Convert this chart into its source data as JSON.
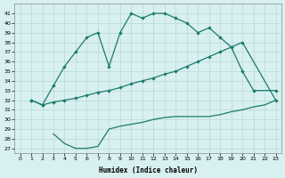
{
  "line1_x": [
    1,
    2,
    3,
    4,
    5,
    6,
    7,
    8,
    9,
    10,
    11,
    12,
    13,
    14,
    15,
    16,
    17,
    18,
    19,
    20,
    21,
    23
  ],
  "line1_y": [
    32.0,
    31.5,
    33.5,
    35.5,
    37.0,
    38.5,
    39.0,
    35.5,
    39.0,
    41.0,
    40.5,
    41.0,
    41.0,
    40.5,
    40.0,
    39.0,
    39.5,
    38.5,
    37.5,
    35.0,
    33.0,
    33.0
  ],
  "line2_x": [
    1,
    2,
    3,
    4,
    5,
    6,
    7,
    8,
    9,
    10,
    11,
    12,
    13,
    14,
    15,
    16,
    17,
    18,
    19,
    20,
    23
  ],
  "line2_y": [
    32.0,
    31.5,
    31.8,
    32.0,
    32.2,
    32.5,
    32.8,
    33.0,
    33.3,
    33.7,
    34.0,
    34.3,
    34.7,
    35.0,
    35.5,
    36.0,
    36.5,
    37.0,
    37.5,
    38.0,
    32.0
  ],
  "line3_x": [
    3,
    4,
    5,
    6,
    7,
    8,
    9,
    10,
    11,
    12,
    13,
    14,
    15,
    16,
    17,
    18,
    19,
    20,
    21,
    22,
    23
  ],
  "line3_y": [
    28.5,
    27.5,
    27.0,
    27.0,
    27.2,
    29.0,
    29.3,
    29.5,
    29.7,
    30.0,
    30.2,
    30.3,
    30.3,
    30.3,
    30.3,
    30.5,
    30.8,
    31.0,
    31.3,
    31.5,
    32.0
  ],
  "color": "#1a7a6e",
  "bg_color": "#d8f0f0",
  "grid_color": "#b8d8d8",
  "xlabel": "Humidex (Indice chaleur)",
  "xlim": [
    -0.5,
    23.5
  ],
  "ylim": [
    26.5,
    42
  ],
  "yticks": [
    27,
    28,
    29,
    30,
    31,
    32,
    33,
    34,
    35,
    36,
    37,
    38,
    39,
    40,
    41
  ],
  "xticks": [
    0,
    1,
    2,
    3,
    4,
    5,
    6,
    7,
    8,
    9,
    10,
    11,
    12,
    13,
    14,
    15,
    16,
    17,
    18,
    19,
    20,
    21,
    22,
    23
  ],
  "markersize": 2.2,
  "linewidth": 0.9
}
